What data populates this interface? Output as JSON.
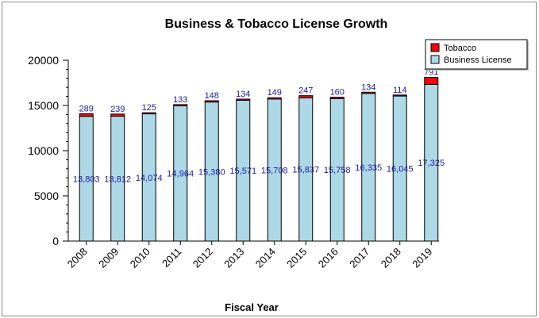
{
  "chart_data": {
    "type": "bar",
    "stacked": true,
    "title": "Business & Tobacco License Growth",
    "xlabel": "Fiscal Year",
    "ylabel": "",
    "ylim": [
      0,
      20000
    ],
    "yticks": [
      0,
      5000,
      10000,
      15000,
      20000
    ],
    "categories": [
      "2008",
      "2009",
      "2010",
      "2011",
      "2012",
      "2013",
      "2014",
      "2015",
      "2016",
      "2017",
      "2018",
      "2019"
    ],
    "series": [
      {
        "name": "Business License",
        "color": "#add8e6",
        "values": [
          13803,
          13812,
          14074,
          14964,
          15380,
          15571,
          15708,
          15837,
          15758,
          16335,
          16045,
          17325
        ],
        "labels": [
          "13,803",
          "13,812",
          "14,074",
          "14,964",
          "15,380",
          "15,571",
          "15,708",
          "15,837",
          "15,758",
          "16,335",
          "16,045",
          "17,325"
        ]
      },
      {
        "name": "Tobacco",
        "color": "#ff0000",
        "values": [
          289,
          239,
          125,
          133,
          148,
          134,
          149,
          247,
          160,
          134,
          114,
          791
        ],
        "labels": [
          "289",
          "239",
          "125",
          "133",
          "148",
          "134",
          "149",
          "247",
          "160",
          "134",
          "114",
          "791"
        ]
      }
    ],
    "legend": {
      "position": "top-right",
      "order": [
        "Tobacco",
        "Business License"
      ]
    },
    "grid": false
  }
}
